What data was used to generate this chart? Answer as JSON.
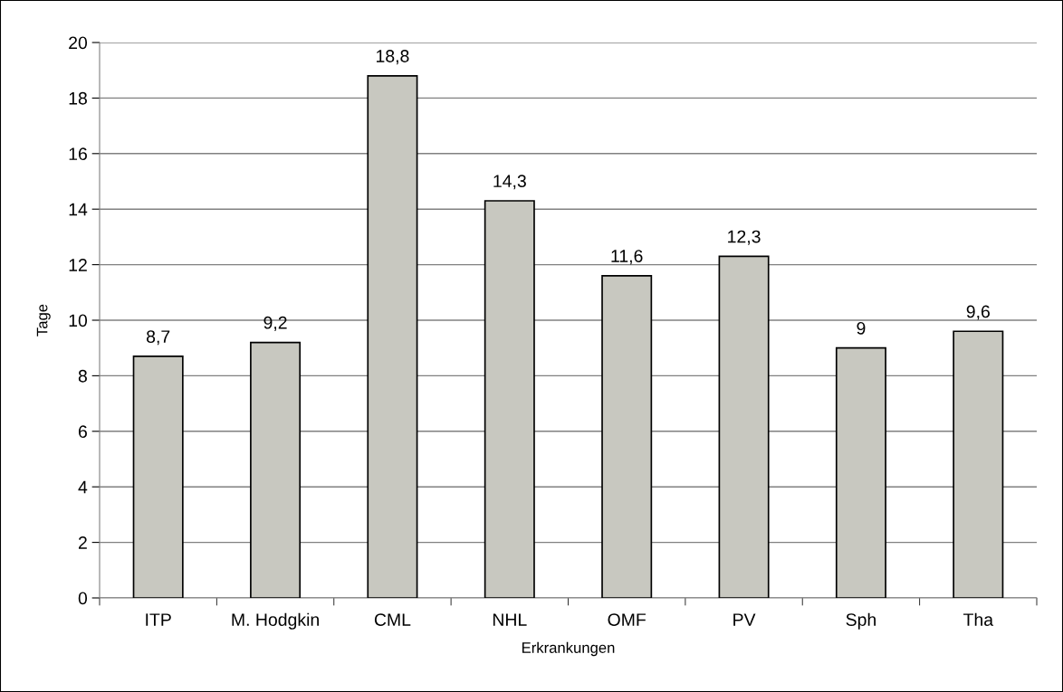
{
  "chart_data": {
    "type": "bar",
    "xlabel": "Erkrankungen",
    "ylabel": "Tage",
    "categories": [
      "ITP",
      "M. Hodgkin",
      "CML",
      "NHL",
      "OMF",
      "PV",
      "Sph",
      "Tha"
    ],
    "values": [
      8.7,
      9.2,
      18.8,
      14.3,
      11.6,
      12.3,
      9,
      9.6
    ],
    "value_labels": [
      "8,7",
      "9,2",
      "18,8",
      "14,3",
      "11,6",
      "12,3",
      "9",
      "9,6"
    ],
    "color": "#c8c8c0",
    "ylim": [
      0,
      20
    ],
    "yticks": [
      0,
      2,
      4,
      6,
      8,
      10,
      12,
      14,
      16,
      18,
      20
    ],
    "grid": "y"
  }
}
